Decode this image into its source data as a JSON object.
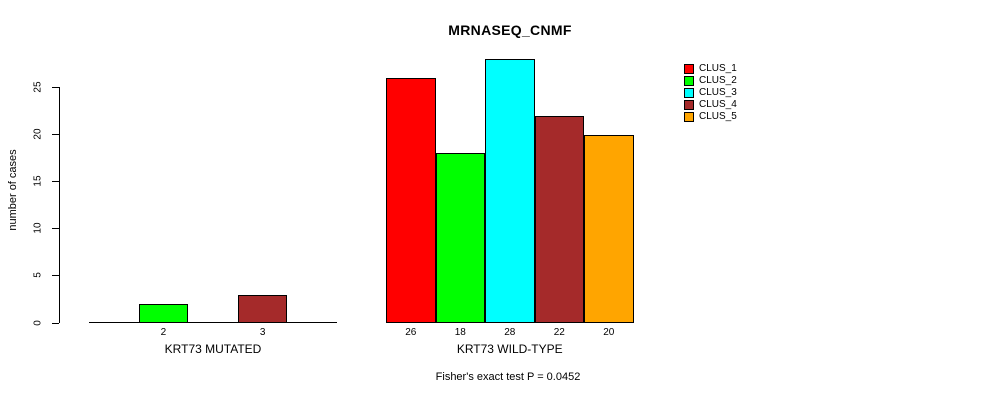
{
  "chart_data": {
    "type": "bar",
    "title": "MRNASEQ_CNMF",
    "ylabel": "number of cases",
    "annotation": "Fisher's exact test P = 0.0452",
    "ylim": [
      0,
      28
    ],
    "yticks": [
      0,
      5,
      10,
      15,
      20,
      25
    ],
    "grid": false,
    "legend_position": "right",
    "series": [
      {
        "name": "CLUS_1",
        "color": "#ff0000"
      },
      {
        "name": "CLUS_2",
        "color": "#00ff00"
      },
      {
        "name": "CLUS_3",
        "color": "#00ffff"
      },
      {
        "name": "CLUS_4",
        "color": "#a52a2a"
      },
      {
        "name": "CLUS_5",
        "color": "#ffa500"
      }
    ],
    "groups": [
      {
        "label": "KRT73 MUTATED",
        "values": [
          0,
          2,
          0,
          3,
          0
        ],
        "bar_labels": [
          "",
          "2",
          "",
          "3",
          ""
        ]
      },
      {
        "label": "KRT73 WILD-TYPE",
        "values": [
          26,
          18,
          28,
          22,
          20
        ],
        "bar_labels": [
          "26",
          "18",
          "28",
          "22",
          "20"
        ]
      }
    ]
  }
}
